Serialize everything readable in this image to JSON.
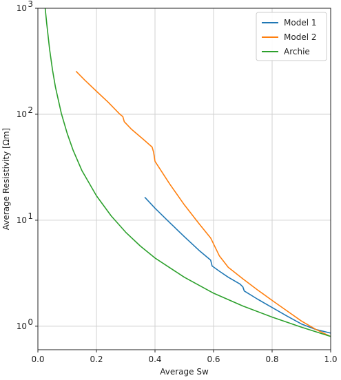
{
  "chart_data": {
    "type": "line",
    "xlabel": "Average Sw",
    "ylabel": "Average Resistivity [Ωm]",
    "xlim": [
      0.0,
      1.0
    ],
    "ylim": [
      0.6,
      1000
    ],
    "yscale": "log",
    "grid": true,
    "legend_position": "top-right",
    "x_ticks": [
      0.0,
      0.2,
      0.4,
      0.6,
      0.8,
      1.0
    ],
    "x_tick_labels": [
      "0.0",
      "0.2",
      "0.4",
      "0.6",
      "0.8",
      "1.0"
    ],
    "y_ticks": [
      1,
      10,
      100,
      1000
    ],
    "y_tick_labels": [
      {
        "base": "10",
        "exp": "0"
      },
      {
        "base": "10",
        "exp": "1"
      },
      {
        "base": "10",
        "exp": "2"
      },
      {
        "base": "10",
        "exp": "3"
      }
    ],
    "series": [
      {
        "name": "Model 1",
        "color": "#1f77b4",
        "points": [
          [
            0.365,
            16.5
          ],
          [
            0.4,
            13.0
          ],
          [
            0.45,
            9.5
          ],
          [
            0.5,
            7.0
          ],
          [
            0.55,
            5.2
          ],
          [
            0.59,
            4.2
          ],
          [
            0.595,
            3.7
          ],
          [
            0.62,
            3.3
          ],
          [
            0.65,
            2.9
          ],
          [
            0.69,
            2.5
          ],
          [
            0.7,
            2.35
          ],
          [
            0.705,
            2.15
          ],
          [
            0.75,
            1.8
          ],
          [
            0.8,
            1.5
          ],
          [
            0.85,
            1.25
          ],
          [
            0.9,
            1.05
          ],
          [
            0.95,
            0.93
          ],
          [
            1.0,
            0.86
          ]
        ]
      },
      {
        "name": "Model 2",
        "color": "#ff7f0e",
        "points": [
          [
            0.13,
            255
          ],
          [
            0.16,
            210
          ],
          [
            0.2,
            165
          ],
          [
            0.24,
            130
          ],
          [
            0.28,
            100
          ],
          [
            0.29,
            95
          ],
          [
            0.295,
            85
          ],
          [
            0.32,
            72
          ],
          [
            0.36,
            58
          ],
          [
            0.39,
            49
          ],
          [
            0.395,
            44
          ],
          [
            0.4,
            36
          ],
          [
            0.45,
            22
          ],
          [
            0.5,
            14
          ],
          [
            0.55,
            9.3
          ],
          [
            0.59,
            6.8
          ],
          [
            0.62,
            4.6
          ],
          [
            0.65,
            3.6
          ],
          [
            0.7,
            2.8
          ],
          [
            0.75,
            2.2
          ],
          [
            0.8,
            1.75
          ],
          [
            0.85,
            1.4
          ],
          [
            0.9,
            1.12
          ],
          [
            0.95,
            0.93
          ],
          [
            1.0,
            0.8
          ]
        ]
      },
      {
        "name": "Archie",
        "color": "#2ca02c",
        "points": [
          [
            0.025,
            1000
          ],
          [
            0.03,
            720
          ],
          [
            0.04,
            410
          ],
          [
            0.05,
            260
          ],
          [
            0.06,
            180
          ],
          [
            0.08,
            102
          ],
          [
            0.1,
            66
          ],
          [
            0.12,
            46
          ],
          [
            0.15,
            29.5
          ],
          [
            0.2,
            17.0
          ],
          [
            0.25,
            11.0
          ],
          [
            0.3,
            7.7
          ],
          [
            0.35,
            5.7
          ],
          [
            0.4,
            4.4
          ],
          [
            0.5,
            2.9
          ],
          [
            0.6,
            2.05
          ],
          [
            0.7,
            1.55
          ],
          [
            0.8,
            1.22
          ],
          [
            0.9,
            0.98
          ],
          [
            1.0,
            0.8
          ]
        ]
      }
    ]
  }
}
